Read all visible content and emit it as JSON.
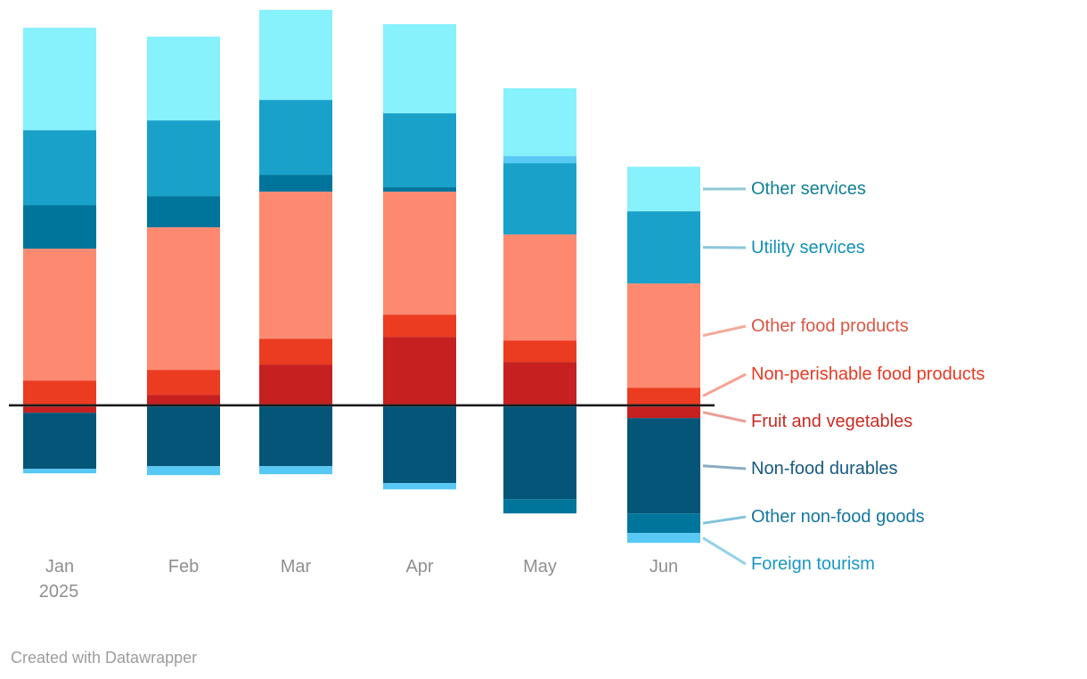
{
  "chart": {
    "background": "#ffffff",
    "zero_line_color": "#1a1a1a"
  },
  "text_colors": {
    "axis": "#8f8f8f",
    "footer": "#9d9d9d"
  },
  "chart_data": {
    "type": "bar",
    "variant": "diverging-stacked-column",
    "title": "",
    "xlabel": "",
    "ylabel": "",
    "y_axis_visible": false,
    "grid": false,
    "legend_position": "right-annotations",
    "categories": [
      "Jan 2025",
      "Feb",
      "Mar",
      "Apr",
      "May",
      "Jun"
    ],
    "x_tick_labels": [
      {
        "line1": "Jan",
        "line2": "2025"
      },
      {
        "line1": "Feb"
      },
      {
        "line1": "Mar"
      },
      {
        "line1": "Apr"
      },
      {
        "line1": "May"
      },
      {
        "line1": "Jun"
      }
    ],
    "ylim": [
      -160,
      450
    ],
    "stack_order": [
      "fruit_and_vegetables",
      "non_perishable_food_products",
      "other_food_products",
      "non_food_durables",
      "other_non_food_goods",
      "utility_services",
      "foreign_tourism",
      "other_services"
    ],
    "series": [
      {
        "key": "other_services",
        "name": "Other services",
        "color": "#87f1fc",
        "values": [
          115,
          94,
          101,
          100,
          76,
          50
        ]
      },
      {
        "key": "utility_services",
        "name": "Utility services",
        "color": "#19a1ca",
        "values": [
          84,
          85,
          84,
          83,
          80,
          81
        ]
      },
      {
        "key": "other_food_products",
        "name": "Other food products",
        "color": "#fd8a70",
        "values": [
          148,
          160,
          165,
          138,
          119,
          117
        ]
      },
      {
        "key": "non_perishable_food_products",
        "name": "Non-perishable food products",
        "color": "#eb3b20",
        "values": [
          26.5,
          28,
          29,
          25,
          24,
          18.5
        ]
      },
      {
        "key": "fruit_and_vegetables",
        "name": "Fruit and vegetables",
        "color": "#c62020",
        "values": [
          -7,
          10.5,
          44.5,
          75.5,
          47.5,
          -13
        ]
      },
      {
        "key": "non_food_durables",
        "name": "Non-food durables",
        "color": "#045578",
        "values": [
          -63,
          -67,
          -67,
          -86,
          -104,
          -107
        ]
      },
      {
        "key": "other_non_food_goods",
        "name": "Other non-food goods",
        "color": "#00759b",
        "values": [
          49,
          35,
          19,
          5,
          -16,
          -22
        ]
      },
      {
        "key": "foreign_tourism",
        "name": "Foreign tourism",
        "color": "#58c8f4",
        "values": [
          -5,
          -10,
          -9,
          -7,
          8,
          -11
        ]
      }
    ],
    "annotations": [
      {
        "key": "other_services",
        "label": "Other services",
        "text_color": "#107f96",
        "line_color": "#8fc9d3"
      },
      {
        "key": "utility_services",
        "label": "Utility services",
        "text_color": "#1190b6",
        "line_color": "#8cc6d8"
      },
      {
        "key": "other_food_products",
        "label": "Other food products",
        "text_color": "#d95744",
        "line_color": "#f3ab99"
      },
      {
        "key": "non_perishable_food_products",
        "label": "Non-perishable food products",
        "text_color": "#e53b24",
        "line_color": "#f2a492"
      },
      {
        "key": "fruit_and_vegetables",
        "label": "Fruit and vegetables",
        "text_color": "#c92b23",
        "line_color": "#ea9e97"
      },
      {
        "key": "non_food_durables",
        "label": "Non-food durables",
        "text_color": "#175a80",
        "line_color": "#8aabc2"
      },
      {
        "key": "other_non_food_goods",
        "label": "Other non-food goods",
        "text_color": "#14779f",
        "line_color": "#82c3da"
      },
      {
        "key": "foreign_tourism",
        "label": "Foreign tourism",
        "text_color": "#1a97c3",
        "line_color": "#94d1ea"
      }
    ]
  },
  "footer": {
    "text": "Created with Datawrapper"
  }
}
